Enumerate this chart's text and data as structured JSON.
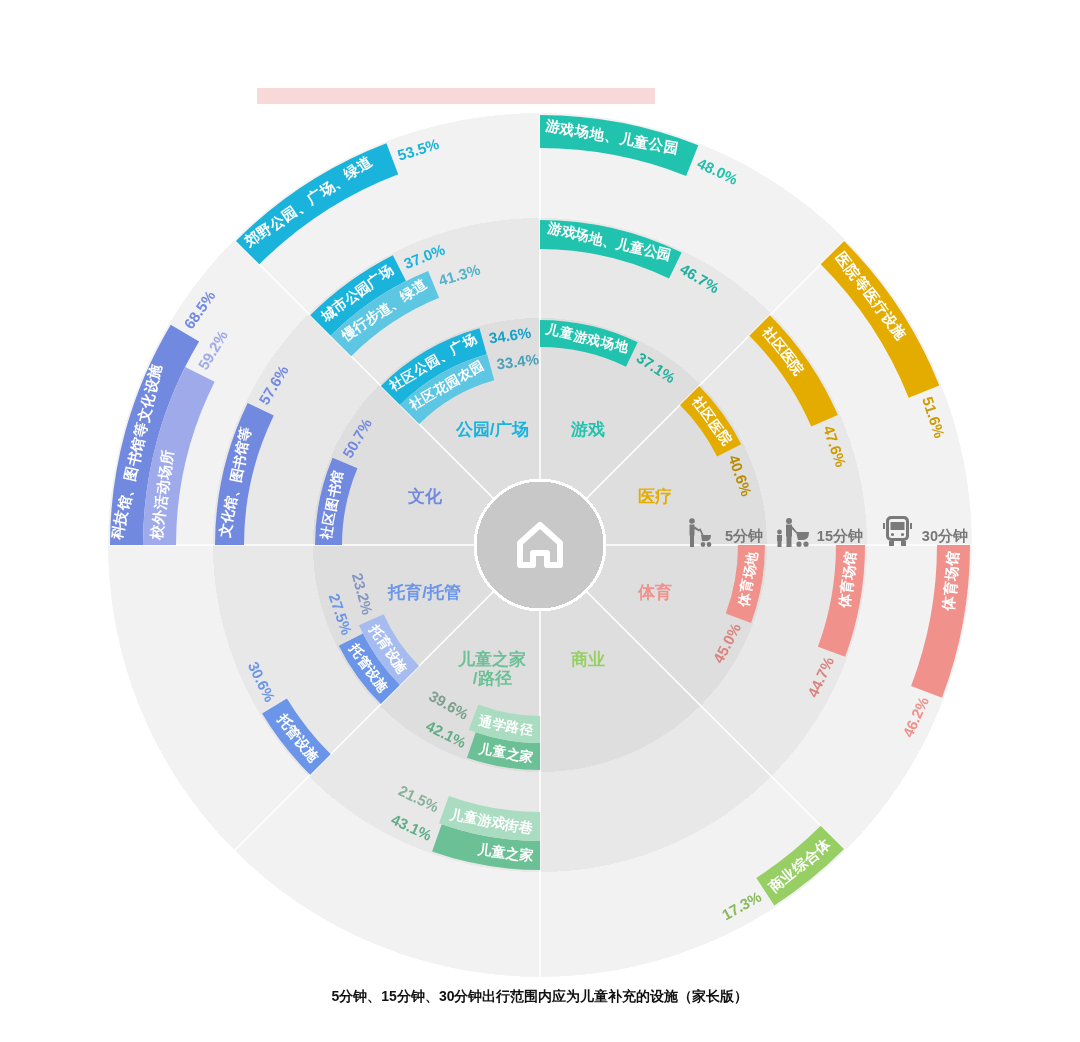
{
  "chart_data": {
    "type": "other",
    "title": "5分钟、15分钟、30分钟出行范围内应为儿童补充的设施（家长版）",
    "categories": [
      "游戏",
      "医疗",
      "体育",
      "商业",
      "儿童之家/路径",
      "托育/托管",
      "文化",
      "公园/广场"
    ],
    "colors": [
      "#22c3ae",
      "#e5ac00",
      "#f0918b",
      "#97cf65",
      "#6cc096",
      "#6b95e8",
      "#7289e0",
      "#1ab3dc"
    ],
    "series": [
      {
        "name": "5分钟",
        "values": [
          37.1,
          40.6,
          45.0,
          null,
          42.1,
          27.5,
          50.7,
          34.6
        ],
        "value_labels": [
          "37.1%",
          "40.6%",
          "45.0%",
          null,
          "42.1%",
          "27.5%",
          "50.7%",
          "34.6%"
        ],
        "colors": [
          "#22c3ae",
          "#e5ac00",
          "#f0918b",
          null,
          "#6cc096",
          "#6b95e8",
          "#7289e0",
          "#1ab3dc"
        ]
      },
      {
        "values": [
          null,
          null,
          null,
          null,
          39.6,
          23.2,
          null,
          33.4
        ],
        "value_labels": [
          null,
          null,
          null,
          null,
          "39.6%",
          "23.2%",
          null,
          "33.4%"
        ],
        "colors": [
          null,
          null,
          null,
          null,
          "#a9dcc1",
          "#a6bbef",
          null,
          "#5dc6e2"
        ]
      },
      {
        "name": "15分钟",
        "values": [
          46.7,
          47.6,
          44.7,
          null,
          43.1,
          30.6,
          57.6,
          37.0
        ],
        "value_labels": [
          "46.7%",
          "47.6%",
          "44.7%",
          null,
          "43.1%",
          "30.6%",
          "57.6%",
          "37.0%"
        ],
        "colors": [
          "#22c3ae",
          "#e5ac00",
          "#f0918b",
          null,
          "#6cc096",
          "#6b95e8",
          "#7289e0",
          "#1ab3dc"
        ]
      },
      {
        "values": [
          null,
          null,
          null,
          null,
          21.5,
          null,
          null,
          41.3
        ],
        "value_labels": [
          null,
          null,
          null,
          null,
          "21.5%",
          null,
          null,
          "41.3%"
        ],
        "colors": [
          null,
          null,
          null,
          null,
          "#a9dcc1",
          null,
          null,
          "#5dc6e2"
        ]
      },
      {
        "name": "30分钟",
        "values": [
          48.0,
          51.6,
          46.2,
          17.3,
          null,
          null,
          68.5,
          53.5
        ],
        "value_labels": [
          "48.0%",
          "51.6%",
          "46.2%",
          "17.3%",
          null,
          null,
          "68.5%",
          "53.5%"
        ],
        "colors": [
          "#22c3ae",
          "#e5ac00",
          "#f0918b",
          "#97cf65",
          null,
          null,
          "#7289e0",
          "#1ab3dc"
        ]
      },
      {
        "values": [
          null,
          null,
          null,
          null,
          null,
          null,
          59.2,
          null
        ],
        "value_labels": [
          null,
          null,
          null,
          null,
          null,
          null,
          "59.2%",
          null
        ],
        "colors": [
          null,
          null,
          null,
          null,
          null,
          null,
          "#9eaaea",
          null
        ]
      }
    ],
    "annotations": [
      {
        "text": "儿童游戏场地",
        "x": "游戏"
      },
      {
        "text": "社区医院",
        "x": "医疗"
      },
      {
        "text": "体育场地",
        "x": "体育"
      },
      {
        "text": "儿童之家",
        "x": "儿童之家/路径"
      },
      {
        "text": "通学路径",
        "x": "儿童之家/路径"
      },
      {
        "text": "托管设施",
        "x": "托育/托管"
      },
      {
        "text": "托育设施",
        "x": "托育/托管"
      },
      {
        "text": "社区图书馆",
        "x": "文化"
      },
      {
        "text": "社区公园、广场",
        "x": "公园/广场"
      },
      {
        "text": "社区花园农园",
        "x": "公园/广场"
      },
      {
        "text": "游戏场地、儿童公园",
        "x": "游戏"
      },
      {
        "text": "社区医院",
        "x": "医疗"
      },
      {
        "text": "体育场馆",
        "x": "体育"
      },
      {
        "text": "儿童之家",
        "x": "儿童之家/路径"
      },
      {
        "text": "儿童游戏街巷",
        "x": "儿童之家/路径"
      },
      {
        "text": "托管设施",
        "x": "托育/托管"
      },
      {
        "text": "文化馆、图书馆等",
        "x": "文化"
      },
      {
        "text": "城市公园广场",
        "x": "公园/广场"
      },
      {
        "text": "慢行步道、绿道",
        "x": "公园/广场"
      },
      {
        "text": "游戏场地、儿童公园",
        "x": "游戏"
      },
      {
        "text": "医院等医疗设施",
        "x": "医疗"
      },
      {
        "text": "体育场馆",
        "x": "体育"
      },
      {
        "text": "商业综合体",
        "x": "商业"
      },
      {
        "text": "科技馆、图书馆等文化设施",
        "x": "文化"
      },
      {
        "text": "校外活动场所",
        "x": "文化"
      },
      {
        "text": "郊野公园、广场、绿道",
        "x": "公园/广场"
      }
    ]
  }
}
